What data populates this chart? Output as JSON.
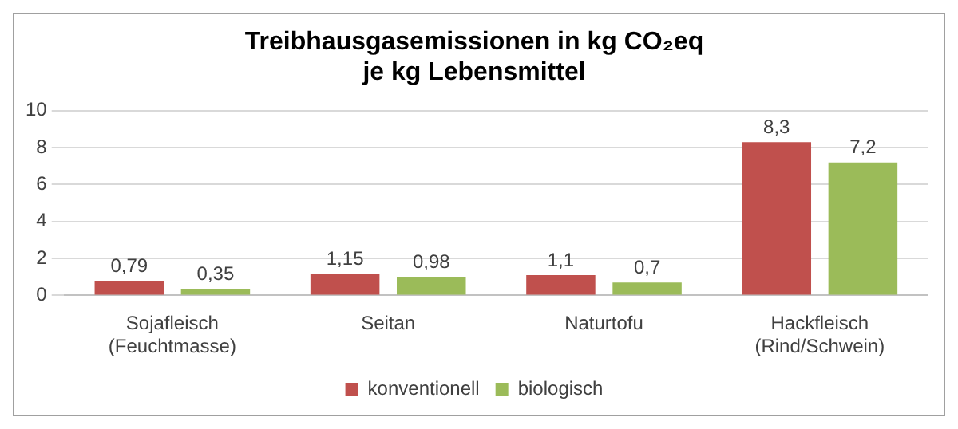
{
  "chart_data": {
    "type": "bar",
    "title": "Treibhausgasemissionen in kg CO₂eq\nje kg Lebensmittel",
    "categories": [
      "Sojafleisch\n(Feuchtmasse)",
      "Seitan",
      "Naturtofu",
      "Hackfleisch\n(Rind/Schwein)"
    ],
    "series": [
      {
        "name": "konventionell",
        "color": "#c0504d",
        "values": [
          0.79,
          1.15,
          1.1,
          8.3
        ],
        "value_labels": [
          "0,79",
          "1,15",
          "1,1",
          "8,3"
        ]
      },
      {
        "name": "biologisch",
        "color": "#9bbb59",
        "values": [
          0.35,
          0.98,
          0.7,
          7.2
        ],
        "value_labels": [
          "0,35",
          "0,98",
          "0,7",
          "7,2"
        ]
      }
    ],
    "ylim": [
      0,
      10
    ],
    "yticks": [
      0,
      2,
      4,
      6,
      8,
      10
    ],
    "grid": "y",
    "legend": "bottom"
  }
}
